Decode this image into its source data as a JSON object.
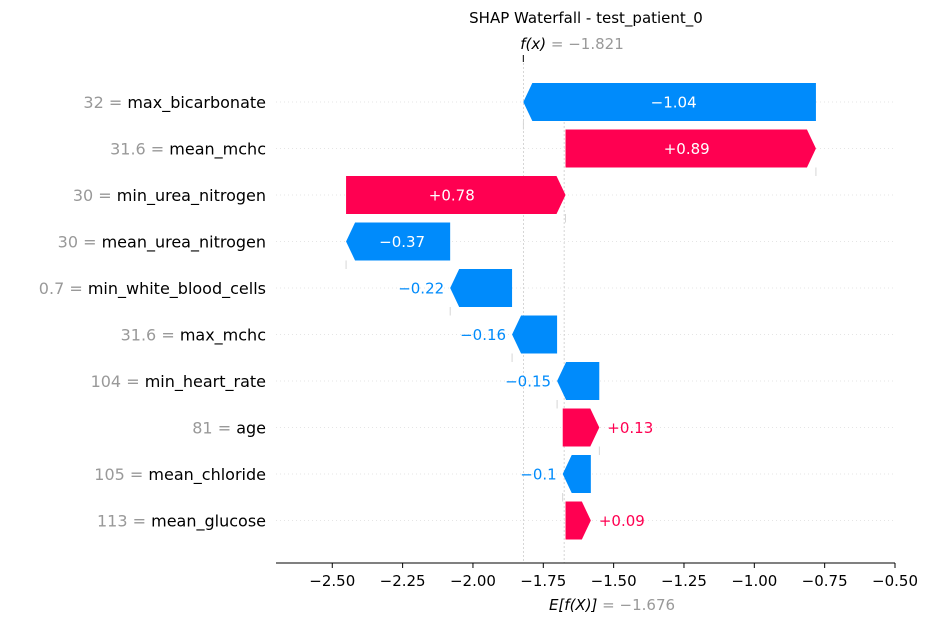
{
  "colors": {
    "positive": "#ff0051",
    "negative": "#008bfb",
    "muted": "#999999",
    "grid": "#cccccc"
  },
  "chart_data": {
    "type": "waterfall",
    "title": "SHAP Waterfall - test_patient_0",
    "fx": {
      "label": "f(x)",
      "eq": " = ",
      "value": "−1.821",
      "num": -1.821
    },
    "base": {
      "label": "E[f(X)]",
      "eq": " = ",
      "value": "−1.676",
      "num": -1.676
    },
    "features": [
      {
        "value": "32",
        "name": "max_bicarbonate",
        "shap": -1.04,
        "label": "−1.04",
        "start": -0.781
      },
      {
        "value": "31.6",
        "name": "mean_mchc",
        "shap": 0.89,
        "label": "+0.89",
        "start": -1.671
      },
      {
        "value": "30",
        "name": "min_urea_nitrogen",
        "shap": 0.78,
        "label": "+0.78",
        "start": -2.451
      },
      {
        "value": "30",
        "name": "mean_urea_nitrogen",
        "shap": -0.37,
        "label": "−0.37",
        "start": -2.081
      },
      {
        "value": "0.7",
        "name": "min_white_blood_cells",
        "shap": -0.22,
        "label": "−0.22",
        "start": -1.861
      },
      {
        "value": "31.6",
        "name": "max_mchc",
        "shap": -0.16,
        "label": "−0.16",
        "start": -1.701
      },
      {
        "value": "104",
        "name": "min_heart_rate",
        "shap": -0.15,
        "label": "−0.15",
        "start": -1.551
      },
      {
        "value": "81",
        "name": "age",
        "shap": 0.13,
        "label": "+0.13",
        "start": -1.681
      },
      {
        "value": "105",
        "name": "mean_chloride",
        "shap": -0.1,
        "label": "−0.1",
        "start": -1.581
      },
      {
        "value": "113",
        "name": "mean_glucose",
        "shap": 0.09,
        "label": "+0.09",
        "start": -1.671
      }
    ],
    "xlim": [
      -2.7,
      -0.5
    ],
    "ticks": [
      -2.5,
      -2.25,
      -2.0,
      -1.75,
      -1.5,
      -1.25,
      -1.0,
      -0.75,
      -0.5
    ],
    "tick_labels": [
      "−2.50",
      "−2.25",
      "−2.00",
      "−1.75",
      "−1.50",
      "−1.25",
      "−1.00",
      "−0.75",
      "−0.50"
    ],
    "grid": "horizontal dotted"
  }
}
